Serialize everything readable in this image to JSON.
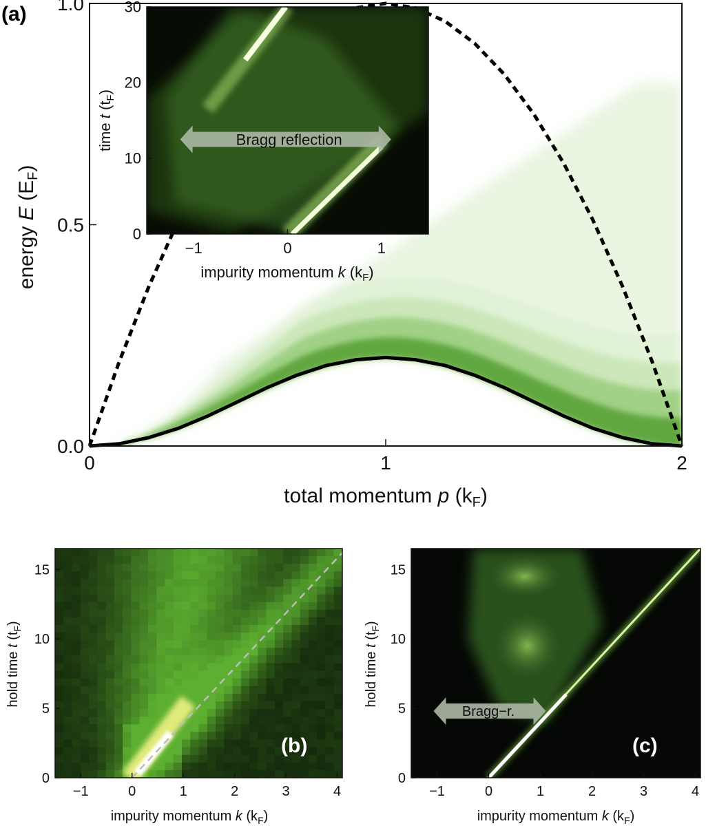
{
  "panels": {
    "a": "(a)",
    "b": "(b)",
    "c": "(c)"
  },
  "chart_data": [
    {
      "panel": "(a)",
      "type": "line",
      "xlabel_pre": "total momentum ",
      "xlabel_var": "p",
      "xlabel_unit_open": " (k",
      "xlabel_unit_sub": "F",
      "xlabel_unit_close": ")",
      "ylabel_pre": "energy ",
      "ylabel_var": "E",
      "ylabel_unit_open": " (E",
      "ylabel_unit_sub": "F",
      "ylabel_unit_close": ")",
      "xlim": [
        0,
        2
      ],
      "ylim": [
        0,
        1.0
      ],
      "xticks": [
        0,
        1,
        2
      ],
      "xtick_labels": [
        "0",
        "1",
        "2"
      ],
      "yticks": [
        0.0,
        0.5,
        1.0
      ],
      "ytick_labels": [
        "0.0",
        "0.5",
        "1.0"
      ],
      "series": [
        {
          "style": "dashed",
          "color": "#000000",
          "x": [
            0,
            0.1,
            0.2,
            0.3,
            0.4,
            0.5,
            0.6,
            0.7,
            0.8,
            0.9,
            1.0,
            1.1,
            1.2,
            1.3,
            1.4,
            1.5,
            1.6,
            1.7,
            1.8,
            1.9,
            2.0
          ],
          "y": [
            0,
            0.19,
            0.36,
            0.51,
            0.64,
            0.75,
            0.84,
            0.91,
            0.96,
            0.99,
            1.0,
            0.99,
            0.96,
            0.91,
            0.84,
            0.75,
            0.64,
            0.51,
            0.36,
            0.19,
            0
          ]
        },
        {
          "style": "solid",
          "color": "#000000",
          "x": [
            0,
            0.1,
            0.2,
            0.3,
            0.4,
            0.5,
            0.6,
            0.7,
            0.8,
            0.9,
            1.0,
            1.1,
            1.2,
            1.3,
            1.4,
            1.5,
            1.6,
            1.7,
            1.8,
            1.9,
            2.0
          ],
          "y": [
            0,
            0.005,
            0.019,
            0.04,
            0.068,
            0.1,
            0.132,
            0.16,
            0.182,
            0.195,
            0.2,
            0.195,
            0.182,
            0.16,
            0.132,
            0.1,
            0.068,
            0.04,
            0.019,
            0.005,
            0
          ]
        }
      ],
      "continuum": {
        "color": "#5fa83c",
        "description_x": [
          0,
          2
        ]
      }
    },
    {
      "panel": "(a) inset",
      "type": "heatmap",
      "xlabel_pre": "impurity momentum ",
      "xlabel_var": "k",
      "xlabel_unit_open": " (k",
      "xlabel_unit_sub": "F",
      "xlabel_unit_close": ")",
      "ylabel_pre": "time ",
      "ylabel_var": "t",
      "ylabel_unit_open": " (t",
      "ylabel_unit_sub": "F",
      "ylabel_unit_close": ")",
      "xlim": [
        -1.5,
        1.5
      ],
      "ylim": [
        0,
        30
      ],
      "xticks": [
        -1,
        0,
        1
      ],
      "xtick_labels": [
        "−1",
        "0",
        "1"
      ],
      "yticks": [
        0,
        10,
        20,
        30
      ],
      "ytick_labels": [
        "0",
        "10",
        "20",
        "30"
      ],
      "annotation": "Bragg reflection",
      "annotation_span_x": [
        -0.85,
        1.0
      ],
      "annotation_y": 12.5
    },
    {
      "panel": "(b)",
      "type": "heatmap",
      "xlabel_pre": "impurity momentum ",
      "xlabel_var": "k",
      "xlabel_unit_open": " (k",
      "xlabel_unit_sub": "F",
      "xlabel_unit_close": ")",
      "ylabel_pre": "hold time ",
      "ylabel_var": "t",
      "ylabel_unit_open": " (t",
      "ylabel_unit_sub": "F",
      "ylabel_unit_close": ")",
      "xlim": [
        -1.5,
        4.1
      ],
      "ylim": [
        0,
        16.5
      ],
      "xticks": [
        -1,
        0,
        1,
        2,
        3,
        4
      ],
      "xtick_labels": [
        "−1",
        "0",
        "1",
        "2",
        "3",
        "4"
      ],
      "yticks": [
        0,
        5,
        10,
        15
      ],
      "ytick_labels": [
        "0",
        "5",
        "10",
        "15"
      ],
      "reference_line": {
        "style": "dashed",
        "color": "#bbbbbb",
        "x": [
          0,
          4.1
        ],
        "y": [
          0,
          16.2
        ]
      }
    },
    {
      "panel": "(c)",
      "type": "heatmap",
      "xlabel_pre": "impurity momentum ",
      "xlabel_var": "k",
      "xlabel_unit_open": " (k",
      "xlabel_unit_sub": "F",
      "xlabel_unit_close": ")",
      "ylabel_pre": "hold time ",
      "ylabel_var": "t",
      "ylabel_unit_open": " (t",
      "ylabel_unit_sub": "F",
      "ylabel_unit_close": ")",
      "xlim": [
        -1.5,
        4.1
      ],
      "ylim": [
        0,
        16.5
      ],
      "xticks": [
        -1,
        0,
        1,
        2,
        3,
        4
      ],
      "xtick_labels": [
        "−1",
        "0",
        "1",
        "2",
        "3",
        "4"
      ],
      "yticks": [
        0,
        5,
        10,
        15
      ],
      "ytick_labels": [
        "0",
        "5",
        "10",
        "15"
      ],
      "annotation": "Bragg−r.",
      "annotation_span_x": [
        -0.8,
        1.0
      ],
      "annotation_y": 4.8
    }
  ]
}
